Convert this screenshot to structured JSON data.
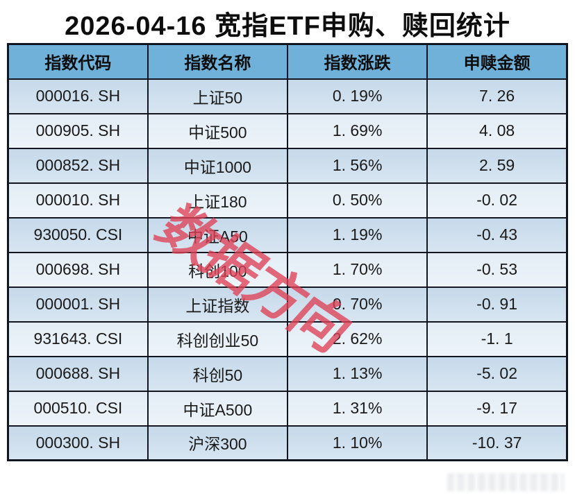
{
  "page": {
    "title": "2026-04-16 宽指ETF申购、赎回统计"
  },
  "watermarks": {
    "diagonal": "数据方向"
  },
  "colors": {
    "header_bg": "#6FB1D8",
    "row_odd": "#CCDDEC",
    "row_even": "#E7EFF7",
    "border": "#10151F",
    "watermark_red": "#DF4156"
  },
  "chart_data": {
    "type": "table",
    "title": "2026-04-16 宽指ETF申购、赎回统计",
    "columns": [
      "指数代码",
      "指数名称",
      "指数涨跌",
      "申赎金额"
    ],
    "rows": [
      [
        "000016. SH",
        "上证50",
        "0. 19%",
        "7. 26"
      ],
      [
        "000905. SH",
        "中证500",
        "1. 69%",
        "4. 08"
      ],
      [
        "000852. SH",
        "中证1000",
        "1. 56%",
        "2. 59"
      ],
      [
        "000010. SH",
        "上证180",
        "0. 50%",
        "-0. 02"
      ],
      [
        "930050. CSI",
        "中证A50",
        "1. 19%",
        "-0. 43"
      ],
      [
        "000698. SH",
        "科创100",
        "1. 70%",
        "-0. 53"
      ],
      [
        "000001. SH",
        "上证指数",
        "0. 70%",
        "-0. 91"
      ],
      [
        "931643. CSI",
        "科创创业50",
        "2. 62%",
        "-1. 1"
      ],
      [
        "000688. SH",
        "科创50",
        "1. 13%",
        "-5. 02"
      ],
      [
        "000510. CSI",
        "中证A500",
        "1. 31%",
        "-9. 17"
      ],
      [
        "000300. SH",
        "沪深300",
        "1. 10%",
        "-10. 37"
      ]
    ]
  }
}
